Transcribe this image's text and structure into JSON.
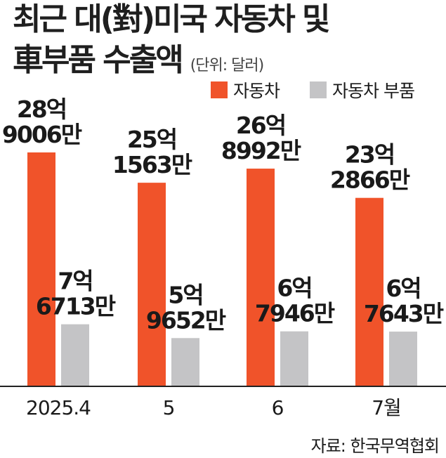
{
  "title": {
    "line1": "최근 대(對)미국 자동차 및",
    "line2": "車부품 수출액",
    "unit": "(단위: 달러)"
  },
  "source": "자료: 한국무역협회",
  "colors": {
    "car": "#f0532a",
    "parts": "#c4c4c6",
    "axis": "#222222"
  },
  "chart_data": {
    "type": "bar",
    "categories": [
      "2025.4",
      "5",
      "6",
      "7월"
    ],
    "series": [
      {
        "name": "자동차",
        "values": [
          2890060000,
          2515630000,
          2689920000,
          2328660000
        ],
        "labels": [
          [
            "28억",
            "9006만"
          ],
          [
            "25억",
            "1563만"
          ],
          [
            "26억",
            "8992만"
          ],
          [
            "23억",
            "2866만"
          ]
        ]
      },
      {
        "name": "자동차 부품",
        "values": [
          767130000,
          596520000,
          679460000,
          676430000
        ],
        "labels": [
          [
            "7억",
            "6713만"
          ],
          [
            "5억",
            "9652만"
          ],
          [
            "6억",
            "7946만"
          ],
          [
            "6억",
            "7643만"
          ]
        ]
      }
    ],
    "ylim": [
      0,
      2890060000
    ],
    "legend": "top-right"
  }
}
